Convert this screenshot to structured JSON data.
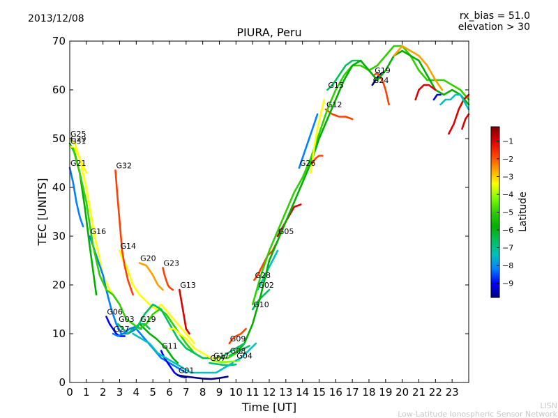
{
  "chart_data": {
    "type": "line",
    "date": "2013/12/08",
    "title": "PIURA, Peru",
    "rx_bias": "rx_bias = 51.0",
    "elevation": "elevation > 30",
    "xlabel": "Time [UT]",
    "ylabel": "TEC [UNITS]",
    "xlim": [
      0,
      24
    ],
    "ylim": [
      0,
      70
    ],
    "xticks": [
      0,
      1,
      2,
      3,
      4,
      5,
      6,
      7,
      8,
      9,
      10,
      11,
      12,
      13,
      14,
      15,
      16,
      17,
      18,
      19,
      20,
      21,
      22,
      23
    ],
    "yticks": [
      0,
      10,
      20,
      30,
      40,
      50,
      60,
      70
    ],
    "colorbar": {
      "label": "Latitude",
      "range": [
        -9.8,
        -0.2
      ],
      "ticks": [
        -1,
        -2,
        -3,
        -4,
        -5,
        -6,
        -7,
        -8,
        -9
      ],
      "colormap": [
        "#00007f",
        "#0000ff",
        "#0080ff",
        "#00c0c0",
        "#00c060",
        "#00b000",
        "#30d000",
        "#80ff00",
        "#ffff00",
        "#ffa000",
        "#ff4000",
        "#dd0000",
        "#800000"
      ]
    },
    "grid": false,
    "credit_short": "LISN",
    "credit_long": "Low-Latitude Ionospheric Sensor Network",
    "series": [
      {
        "name": "G25",
        "lat": -3.8,
        "x": [
          0.0,
          0.3,
          0.6,
          1.0,
          1.5,
          2.0,
          2.4,
          2.8
        ],
        "y": [
          50,
          49,
          46,
          40,
          30,
          22,
          19,
          17
        ]
      },
      {
        "name": "G29",
        "lat": -5.8,
        "x": [
          0.0,
          0.3,
          0.6,
          0.9,
          1.2,
          1.6
        ],
        "y": [
          49,
          47,
          43,
          36,
          28,
          18
        ]
      },
      {
        "name": "G31",
        "lat": -3.3,
        "x": [
          0.0,
          0.3,
          0.6,
          1.0
        ],
        "y": [
          48.5,
          48,
          46,
          43
        ]
      },
      {
        "name": "G21",
        "lat": -8.4,
        "x": [
          0.0,
          0.2,
          0.4,
          0.6,
          0.8
        ],
        "y": [
          44,
          41,
          37,
          34,
          32
        ]
      },
      {
        "name": "G16",
        "lat": -8.2,
        "x": [
          1.2,
          1.4,
          1.7,
          2.0,
          2.2,
          2.5,
          2.8,
          3.1,
          3.5,
          4.0,
          4.5,
          5.0,
          5.5,
          6.0,
          6.5,
          7.0
        ],
        "y": [
          30,
          28,
          25,
          22,
          19,
          15,
          12,
          10,
          10,
          11,
          9,
          7,
          5,
          4,
          3,
          2
        ]
      },
      {
        "name": "G14",
        "lat": -3.5,
        "x": [
          3.0,
          3.2,
          3.4,
          3.6,
          3.8,
          4.0,
          4.2,
          4.5,
          4.8,
          5.2,
          5.5,
          6.0,
          6.5,
          7.0,
          7.5
        ],
        "y": [
          27,
          25,
          24,
          22,
          20,
          19,
          18,
          17,
          16,
          15,
          16,
          14,
          12,
          10,
          8
        ]
      },
      {
        "name": "G32",
        "lat": -1.5,
        "x": [
          2.75,
          2.85,
          2.95,
          3.05,
          3.15,
          3.3,
          3.5,
          3.8
        ],
        "y": [
          43.5,
          39,
          35,
          31,
          27,
          24,
          21,
          18
        ]
      },
      {
        "name": "G20",
        "lat": -2.8,
        "x": [
          4.2,
          4.6,
          5.0,
          5.3,
          5.6
        ],
        "y": [
          24.5,
          24,
          22,
          20,
          19
        ]
      },
      {
        "name": "G23",
        "lat": -1.5,
        "x": [
          5.6,
          5.7,
          5.8,
          5.9,
          6.0,
          6.2
        ],
        "y": [
          23.5,
          22,
          21,
          20,
          19.5,
          19
        ]
      },
      {
        "name": "G13",
        "lat": -1.3,
        "x": [
          6.6,
          6.7,
          6.8,
          6.9,
          7.0,
          7.2
        ],
        "y": [
          19,
          17,
          15,
          13,
          11,
          10
        ]
      },
      {
        "name": "G06",
        "lat": -9.3,
        "x": [
          2.2,
          2.4,
          2.6,
          2.8,
          3.0,
          3.3
        ],
        "y": [
          13.5,
          12,
          11,
          10,
          9.5,
          9.5
        ]
      },
      {
        "name": "G03",
        "lat": -7.0,
        "x": [
          2.9,
          3.2,
          3.5,
          3.8,
          4.2,
          4.5,
          4.8
        ],
        "y": [
          12,
          11,
          10,
          11,
          12,
          12,
          11
        ]
      },
      {
        "name": "G27",
        "lat": -8.0,
        "x": [
          2.6,
          2.9,
          3.2,
          3.6,
          4.0,
          4.3
        ],
        "y": [
          10,
          9.5,
          10,
          11,
          11.5,
          11
        ]
      },
      {
        "name": "G19",
        "lat": -5.5,
        "x": [
          4.2,
          4.5,
          4.8,
          5.2,
          5.5,
          5.8,
          6.2,
          6.5
        ],
        "y": [
          12,
          11,
          10,
          9,
          8,
          7,
          5,
          4
        ]
      },
      {
        "name": "G11",
        "lat": -9.0,
        "x": [
          5.5,
          5.7,
          5.9,
          6.1,
          6.3,
          6.5,
          6.7,
          7.0
        ],
        "y": [
          6.5,
          5,
          4,
          3,
          2,
          1.5,
          1.2,
          1
        ]
      },
      {
        "name": "G01",
        "lat": -9.5,
        "x": [
          6.5,
          7.0,
          7.5,
          8.0,
          8.5,
          9.0,
          9.5
        ],
        "y": [
          1.5,
          1.2,
          1,
          0.8,
          0.7,
          0.9,
          1.2
        ]
      },
      {
        "name": "G07",
        "lat": -6.5,
        "x": [
          8.4,
          8.8,
          9.2,
          9.6,
          10.0
        ],
        "y": [
          4,
          3.8,
          3.6,
          3.5,
          3.7
        ]
      },
      {
        "name": "G17",
        "lat": -4.5,
        "x": [
          8.6,
          9.0,
          9.4,
          9.8,
          10.2
        ],
        "y": [
          4.5,
          4.2,
          4.2,
          4.3,
          4.5
        ]
      },
      {
        "name": "G09",
        "lat": -1.5,
        "x": [
          9.6,
          9.8,
          10.0,
          10.3,
          10.6
        ],
        "y": [
          8,
          9,
          9.5,
          10,
          11
        ]
      },
      {
        "name": "G08",
        "lat": -6.8,
        "x": [
          9.6,
          9.9,
          10.2,
          10.5,
          10.8
        ],
        "y": [
          5.5,
          6,
          6.5,
          7,
          7.5
        ]
      },
      {
        "name": "G04",
        "lat": -7.8,
        "x": [
          10.0,
          10.3,
          10.6,
          10.9,
          11.2
        ],
        "y": [
          4.5,
          5,
          6,
          7,
          8
        ]
      },
      {
        "name": "G10",
        "lat": -7.0,
        "x": [
          11.0,
          11.2,
          11.4,
          11.7,
          12.0
        ],
        "y": [
          15,
          16,
          17,
          18,
          19
        ]
      },
      {
        "name": "G28",
        "lat": -1.8,
        "x": [
          11.1,
          11.3,
          11.6,
          11.9,
          12.2,
          12.5
        ],
        "y": [
          21,
          22,
          24,
          26,
          27,
          29
        ]
      },
      {
        "name": "G02",
        "lat": -7.3,
        "x": [
          11.3,
          11.6,
          11.9,
          12.2,
          12.5
        ],
        "y": [
          19,
          21,
          23,
          25,
          27
        ]
      },
      {
        "name": "G05",
        "lat": -1.2,
        "x": [
          12.5,
          13.0,
          13.5,
          13.9
        ],
        "y": [
          30,
          33,
          36,
          36.5
        ]
      },
      {
        "name": "G26",
        "lat": -8.5,
        "x": [
          13.8,
          14.2,
          14.6,
          14.9
        ],
        "y": [
          44,
          48,
          52,
          55
        ]
      },
      {
        "name": "G12",
        "lat": -2.0,
        "x": [
          15.4,
          15.8,
          16.2,
          16.6,
          17.0
        ],
        "y": [
          56,
          55,
          54.5,
          54.5,
          54
        ]
      },
      {
        "name": "G15",
        "lat": -6.5,
        "x": [
          15.5,
          15.8,
          16.2,
          16.6,
          17.0,
          17.4
        ],
        "y": [
          60,
          61,
          63,
          65,
          66,
          66
        ]
      },
      {
        "name": "G24",
        "lat": -9.5,
        "x": [
          18.2,
          18.4,
          18.6,
          18.8
        ],
        "y": [
          61,
          62,
          63,
          63.5
        ]
      },
      {
        "name": "G19",
        "lat": -1.8,
        "x": [
          18.3,
          18.5,
          18.8,
          19.0,
          19.2
        ],
        "y": [
          63,
          63.5,
          62,
          60,
          57
        ]
      },
      {
        "name": "",
        "lat": -4.8,
        "x": [
          11.0,
          11.5,
          12.0,
          12.5,
          13.0,
          13.5,
          14.0,
          14.5,
          15.0,
          15.5,
          16.0,
          16.5,
          17.0,
          17.5,
          18.0,
          18.5,
          19.0,
          19.5,
          20.0,
          20.5,
          21.0,
          21.5,
          22.0,
          22.5,
          23.0,
          23.5,
          24.0
        ],
        "y": [
          16,
          22,
          27,
          31,
          35,
          39,
          42,
          46,
          51,
          56,
          60,
          63,
          65,
          65,
          64,
          65,
          67,
          69,
          69,
          67,
          64,
          62,
          62,
          62,
          61,
          60,
          58
        ]
      },
      {
        "name": "",
        "lat": -6.2,
        "x": [
          10.0,
          10.5,
          11.0,
          11.5,
          12.0,
          12.5,
          13.0,
          13.5,
          14.0,
          14.5,
          15.0,
          15.5,
          16.0,
          16.5,
          17.0,
          17.5,
          18.0,
          18.5,
          19.0,
          19.5,
          20.0,
          20.5,
          21.0,
          21.5,
          22.0,
          22.5,
          23.0,
          23.5,
          24.0
        ],
        "y": [
          6,
          8,
          12,
          18,
          25,
          29,
          33,
          37,
          41,
          45,
          50,
          54,
          58,
          62,
          65,
          66,
          64,
          62,
          64,
          67,
          68,
          67,
          66,
          63,
          60,
          59,
          60,
          59,
          57
        ]
      },
      {
        "name": "",
        "lat": -2.5,
        "x": [
          19.5,
          20.0,
          20.5,
          21.0,
          21.5,
          22.0,
          22.4
        ],
        "y": [
          67,
          69,
          68,
          67,
          65,
          62,
          60
        ]
      },
      {
        "name": "",
        "lat": -1.0,
        "x": [
          20.8,
          21.0,
          21.3,
          21.6,
          22.0
        ],
        "y": [
          58,
          60,
          61,
          61,
          60
        ]
      },
      {
        "name": "",
        "lat": -1.2,
        "x": [
          22.8,
          23.1,
          23.4,
          23.7,
          24.0
        ],
        "y": [
          51,
          53,
          56,
          58,
          59
        ]
      },
      {
        "name": "",
        "lat": -7.8,
        "x": [
          22.3,
          22.6,
          22.9,
          23.2,
          23.5,
          24.0
        ],
        "y": [
          57,
          58,
          58,
          59,
          59,
          56
        ]
      },
      {
        "name": "",
        "lat": -8.8,
        "x": [
          21.9,
          22.1,
          22.3
        ],
        "y": [
          58,
          59,
          59
        ]
      },
      {
        "name": "",
        "lat": -1.3,
        "x": [
          23.6,
          23.8,
          24.0
        ],
        "y": [
          52,
          54,
          55
        ]
      },
      {
        "name": "",
        "lat": -5.2,
        "x": [
          0.2,
          0.6,
          1.0,
          1.4,
          1.8,
          2.2,
          2.6,
          3.0,
          3.4,
          3.8,
          4.2,
          4.6,
          5.0,
          5.4,
          5.8,
          6.2,
          6.6,
          7.0,
          7.5,
          8.0,
          8.5,
          9.0,
          9.5,
          10.0
        ],
        "y": [
          48,
          43,
          37,
          28,
          22,
          19,
          18,
          16,
          13,
          12,
          11,
          12,
          14,
          15,
          14,
          12,
          10,
          8,
          6,
          5,
          5,
          5,
          5,
          6
        ]
      },
      {
        "name": "",
        "lat": -6.8,
        "x": [
          4.0,
          4.5,
          5.0,
          5.5,
          6.0,
          6.5,
          7.0,
          7.5,
          8.0,
          8.5,
          9.0,
          9.5,
          10.0,
          10.5
        ],
        "y": [
          11,
          14,
          16,
          15,
          12,
          9,
          7,
          6,
          5,
          5,
          5,
          6,
          7,
          8
        ]
      },
      {
        "name": "",
        "lat": -7.5,
        "x": [
          3.8,
          4.3,
          4.8,
          5.3,
          5.8,
          6.3,
          6.8,
          7.3,
          7.8,
          8.3,
          8.8,
          9.3,
          9.8
        ],
        "y": [
          10,
          9,
          8,
          6,
          5,
          4,
          3,
          2,
          2,
          2,
          2,
          3,
          4
        ]
      },
      {
        "name": "",
        "lat": -3.2,
        "x": [
          6.0,
          6.3,
          6.6,
          7.0,
          7.5,
          8.0,
          8.5,
          9.0
        ],
        "y": [
          11,
          11,
          10,
          9,
          7,
          6,
          5,
          5
        ]
      },
      {
        "name": "",
        "lat": -3.7,
        "x": [
          14.5,
          14.7,
          14.9,
          15.1,
          15.3
        ],
        "y": [
          43,
          48,
          52,
          55,
          58
        ]
      },
      {
        "name": "",
        "lat": -1.6,
        "x": [
          14.6,
          14.8,
          15.0,
          15.2
        ],
        "y": [
          45,
          46,
          46.5,
          46.5
        ]
      }
    ]
  }
}
